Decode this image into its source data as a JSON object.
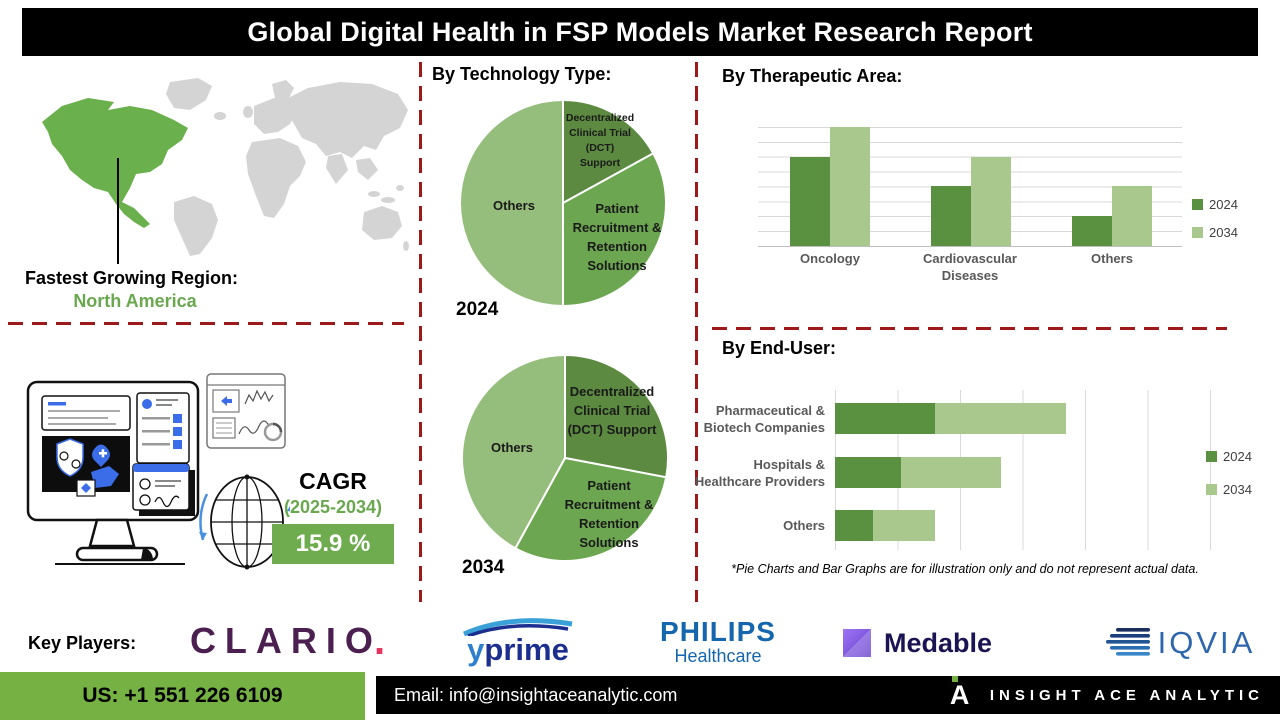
{
  "title": "Global Digital Health in FSP Models Market Research Report",
  "map": {
    "label": "Fastest Growing Region:",
    "region": "North America"
  },
  "cagr": {
    "label": "CAGR",
    "period": "(2025-2034)",
    "value": "15.9 %"
  },
  "headings": {
    "technology": "By Technology Type:",
    "therapeutic": "By Therapeutic Area:",
    "enduser": "By End-User:"
  },
  "footnote": "*Pie Charts and Bar Graphs are for illustration only and do not represent actual data.",
  "colors": {
    "green_dark": "#599140",
    "green_mid": "#6ca650",
    "green_light": "#a8c88e",
    "pie_light": "#95bd7b",
    "accent_green": "#6aa84f",
    "divider_red": "#9e1a1a",
    "footer_green": "#76b143"
  },
  "chart_data": [
    {
      "type": "pie",
      "title": "By Technology Type:",
      "year_label": "2024",
      "slices": [
        {
          "label": "Decentralized Clinical Trial (DCT) Support",
          "value": 17,
          "color": "#5c8a41",
          "label_lines": [
            "Decentralized",
            "Clinical Trial",
            "(DCT)",
            "Support"
          ]
        },
        {
          "label": "Patient Recruitment & Retention Solutions",
          "value": 33,
          "color": "#6ca650",
          "label_lines": [
            "Patient",
            "Recruitment &",
            "Retention",
            "Solutions"
          ]
        },
        {
          "label": "Others",
          "value": 50,
          "color": "#95bd7b",
          "label_lines": [
            "Others"
          ]
        }
      ],
      "note": "illustrative proportions"
    },
    {
      "type": "pie",
      "title": "By Technology Type:",
      "year_label": "2034",
      "slices": [
        {
          "label": "Decentralized Clinical Trial (DCT) Support",
          "value": 28,
          "color": "#5c8a41",
          "label_lines": [
            "Decentralized",
            "Clinical Trial",
            "(DCT) Support"
          ]
        },
        {
          "label": "Patient Recruitment & Retention Solutions",
          "value": 30,
          "color": "#6ca650",
          "label_lines": [
            "Patient",
            "Recruitment &",
            "Retention",
            "Solutions"
          ]
        },
        {
          "label": "Others",
          "value": 42,
          "color": "#95bd7b",
          "label_lines": [
            "Others"
          ]
        }
      ],
      "note": "illustrative proportions"
    },
    {
      "type": "bar",
      "title": "By Therapeutic Area:",
      "categories": [
        "Oncology",
        "Cardiovascular Diseases",
        "Others"
      ],
      "categories_lines": [
        [
          "Oncology"
        ],
        [
          "Cardiovascular",
          "Diseases"
        ],
        [
          "Others"
        ]
      ],
      "series": [
        {
          "name": "2024",
          "color": "#599140",
          "values": [
            6,
            4,
            2
          ]
        },
        {
          "name": "2034",
          "color": "#a8c88e",
          "values": [
            8,
            6,
            4
          ]
        }
      ],
      "ylim": [
        0,
        9
      ],
      "grid": true,
      "legend_position": "right",
      "note": "illustrative values estimated from gridlines"
    },
    {
      "type": "stacked-hbar",
      "title": "By End-User:",
      "categories": [
        "Pharmaceutical & Biotech Companies",
        "Hospitals & Healthcare Providers",
        "Others"
      ],
      "categories_lines": [
        [
          "Pharmaceutical &",
          "Biotech Companies"
        ],
        [
          "Hospitals &",
          "Healthcare Providers"
        ],
        [
          "Others"
        ]
      ],
      "series": [
        {
          "name": "2024",
          "color": "#599140",
          "values": [
            1.6,
            1.05,
            0.6
          ]
        },
        {
          "name": "2034",
          "color": "#a8c88e",
          "values": [
            2.1,
            1.6,
            1.0
          ]
        }
      ],
      "xlim": [
        0,
        6
      ],
      "grid": true,
      "legend_position": "right",
      "note": "illustrative values estimated from gridlines"
    }
  ],
  "key_players": {
    "label": "Key Players:",
    "names": [
      "Clario",
      "YPrime",
      "Philips Healthcare",
      "Medable",
      "IQVIA"
    ],
    "logos": [
      {
        "name": "clario",
        "text": "CLARIO",
        "dot": "."
      },
      {
        "name": "yprime",
        "text_y": "y",
        "text_rest": "prime"
      },
      {
        "name": "philips",
        "line1": "PHILIPS",
        "line2": "Healthcare"
      },
      {
        "name": "medable",
        "text": "Medable"
      },
      {
        "name": "iqvia",
        "text": "IQVIA"
      }
    ]
  },
  "footer": {
    "phone": "US: +1 551 226 6109",
    "email": "Email: info@insightaceanalytic.com",
    "brand": "INSIGHT ACE ANALYTIC"
  }
}
